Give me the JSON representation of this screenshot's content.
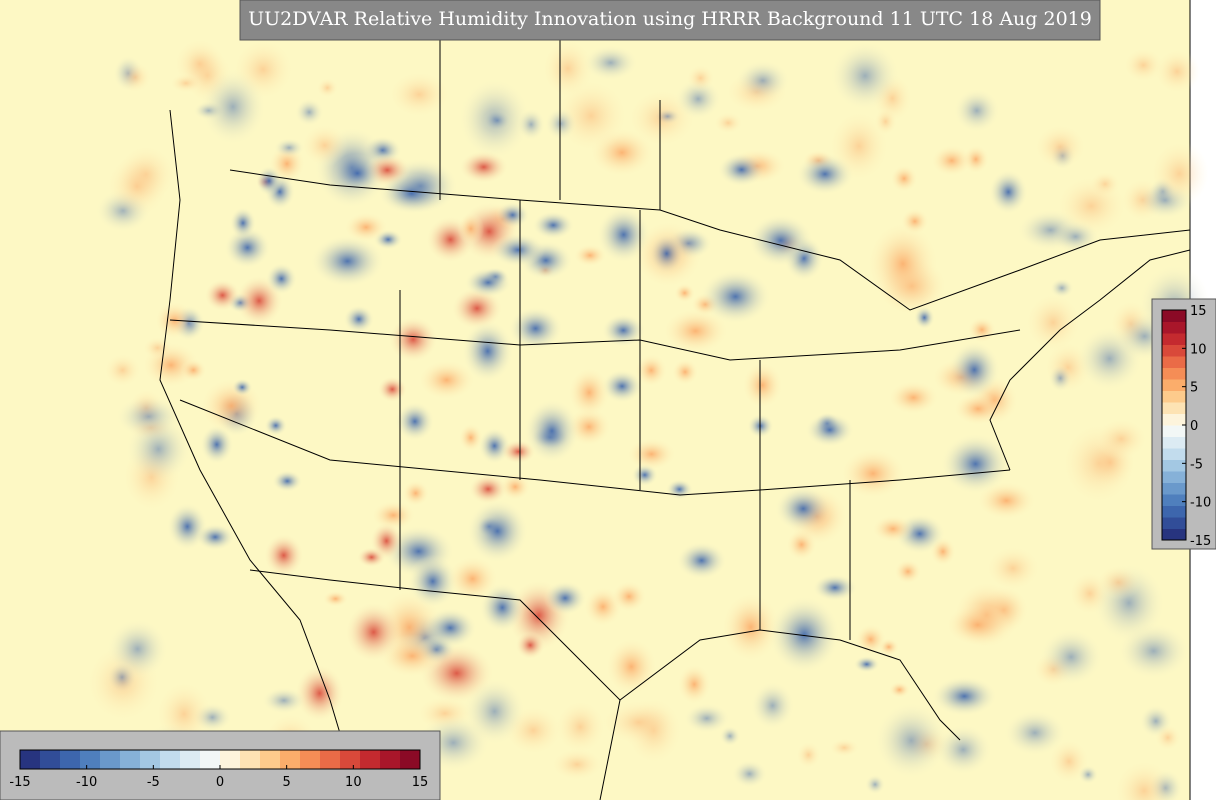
{
  "header": {
    "title": "UU2DVAR Relative Humidity Innovation using HRRR Background 11 UTC 18 Aug 2019"
  },
  "colorbar": {
    "range": [
      -15,
      15
    ],
    "ticks": [
      -15,
      -10,
      -5,
      0,
      5,
      10,
      15
    ],
    "colors": [
      "#27347f",
      "#314d98",
      "#3d66ad",
      "#4f7fbd",
      "#6a99cb",
      "#86b1d8",
      "#a3c8e3",
      "#c2dced",
      "#dcebf3",
      "#f2f7f6",
      "#fdf4dc",
      "#fde3b4",
      "#fdcb8c",
      "#fbad6b",
      "#f58d56",
      "#ea6b47",
      "#d9493a",
      "#c42a2f",
      "#a9162a",
      "#8b0a26"
    ]
  }
}
